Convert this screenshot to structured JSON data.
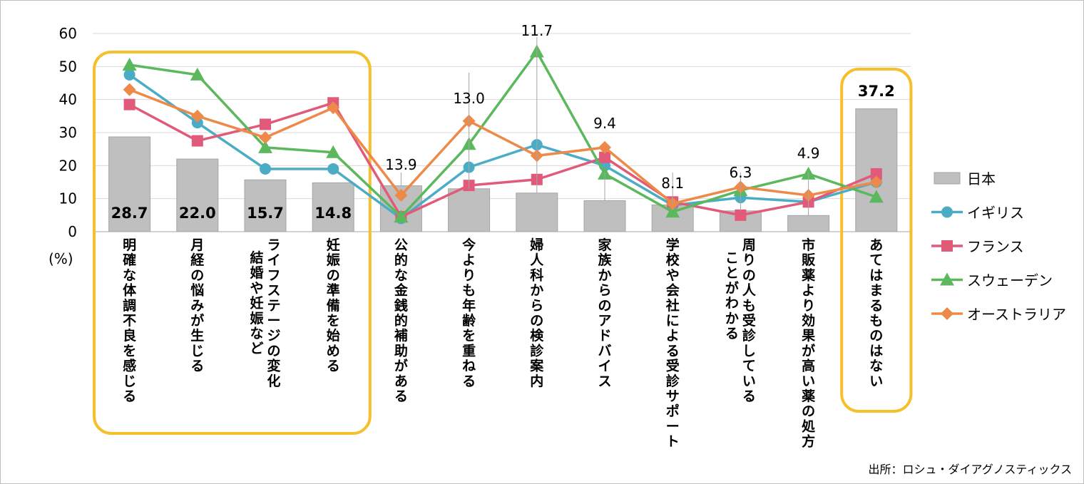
{
  "chart_data": {
    "type": "bar+line",
    "title": "",
    "ylabel": "(%)",
    "ylim": [
      0,
      60
    ],
    "yticks": [
      "0",
      "10",
      "20",
      "30",
      "40",
      "50",
      "60"
    ],
    "categories": [
      [
        "明確な体調不良を感じる"
      ],
      [
        "月経の悩みが生じる"
      ],
      [
        "ライフステージの変化",
        "結婚や妊娠など"
      ],
      [
        "妊娠の準備を始める"
      ],
      [
        "公的な金銭的補助がある"
      ],
      [
        "今よりも年齢を重ねる"
      ],
      [
        "婦人科からの検診案内"
      ],
      [
        "家族からのアドバイス"
      ],
      [
        "学校や会社による受診サポート"
      ],
      [
        "周りの人も受診している",
        "ことがわかる"
      ],
      [
        "市販薬より効果が高い薬の処方"
      ],
      [
        "あてはまるものはない"
      ]
    ],
    "bar_series": {
      "name": "日本",
      "color": "#bfbfbf",
      "values": [
        28.7,
        22.0,
        15.7,
        14.8,
        13.9,
        13.0,
        11.7,
        9.4,
        8.1,
        6.3,
        4.9,
        37.2
      ],
      "value_labels": [
        "28.7",
        "22.0",
        "15.7",
        "14.8",
        "13.9",
        "13.0",
        "11.7",
        "9.4",
        "8.1",
        "6.3",
        "4.9",
        "37.2"
      ]
    },
    "line_series": [
      {
        "name": "イギリス",
        "color": "#4bacc6",
        "marker": "circle",
        "values": [
          47.5,
          33.0,
          19.0,
          19.0,
          4.0,
          19.5,
          26.3,
          20.0,
          8.0,
          10.3,
          9.0,
          15.0
        ]
      },
      {
        "name": "フランス",
        "color": "#e15a7a",
        "marker": "square",
        "values": [
          38.5,
          27.5,
          32.5,
          39.0,
          4.5,
          14.0,
          15.8,
          22.5,
          9.0,
          5.0,
          9.0,
          17.5
        ]
      },
      {
        "name": "スウェーデン",
        "color": "#5cb85c",
        "marker": "triangle",
        "values": [
          50.5,
          47.5,
          25.5,
          24.0,
          4.5,
          26.5,
          54.5,
          17.5,
          6.0,
          12.5,
          17.5,
          10.5
        ]
      },
      {
        "name": "オーストラリア",
        "color": "#ed8a4a",
        "marker": "diamond",
        "values": [
          43.0,
          35.0,
          28.5,
          37.5,
          11.0,
          33.5,
          23.0,
          25.5,
          8.5,
          13.5,
          11.0,
          15.0
        ]
      }
    ],
    "highlight_boxes": [
      [
        0,
        3
      ],
      [
        11,
        11
      ]
    ],
    "legend_position": "right"
  },
  "source": "出所：ロシュ・ダイアグノスティックス"
}
